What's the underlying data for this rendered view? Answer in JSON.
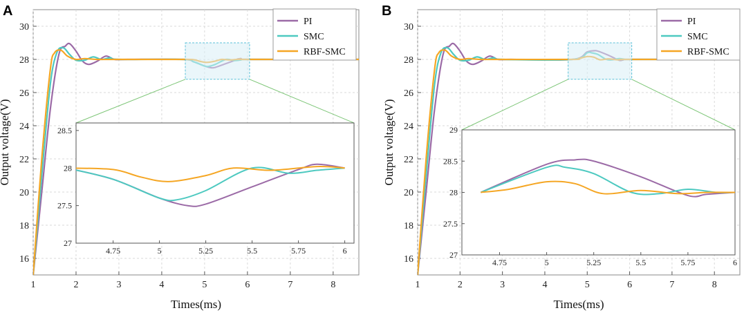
{
  "colors": {
    "PI": "#9b6aa6",
    "SMC": "#4dc9c0",
    "RBF-SMC": "#f5a623"
  },
  "chart_data": [
    {
      "type": "line",
      "panel_label": "A",
      "xlabel": "Times(ms)",
      "ylabel": "Output voltage(V)",
      "xlim": [
        1,
        8.6
      ],
      "ylim": [
        15,
        31
      ],
      "xticks": [
        "1",
        "2",
        "3",
        "4",
        "5",
        "6",
        "7",
        "8"
      ],
      "yticks": [
        "16",
        "18",
        "20",
        "22",
        "24",
        "26",
        "28",
        "30"
      ],
      "legend": [
        "PI",
        "SMC",
        "RBF-SMC"
      ],
      "series": [
        {
          "name": "PI",
          "x": [
            1,
            1.2,
            1.4,
            1.6,
            1.75,
            1.85,
            2.0,
            2.15,
            2.3,
            2.5,
            2.7,
            2.9,
            3.2,
            4.5,
            4.75,
            5.0,
            5.15,
            5.25,
            5.5,
            5.75,
            5.85,
            6.0,
            8.6
          ],
          "y": [
            15,
            20,
            25,
            28.3,
            28.8,
            28.95,
            28.5,
            27.9,
            27.7,
            27.9,
            28.2,
            28.0,
            28.0,
            28.0,
            27.85,
            27.6,
            27.5,
            27.52,
            27.75,
            27.98,
            28.05,
            28.0,
            28.0
          ]
        },
        {
          "name": "SMC",
          "x": [
            1,
            1.2,
            1.4,
            1.55,
            1.7,
            1.85,
            2.0,
            2.2,
            2.4,
            2.6,
            2.8,
            3.0,
            4.5,
            4.75,
            5.0,
            5.1,
            5.25,
            5.5,
            5.7,
            5.85,
            6.0,
            8.6
          ],
          "y": [
            15,
            21,
            26.5,
            28.4,
            28.7,
            28.3,
            27.95,
            27.95,
            28.15,
            28.0,
            28.1,
            28.0,
            28.0,
            27.85,
            27.6,
            27.58,
            27.7,
            28.0,
            27.93,
            27.97,
            28.0,
            28.0
          ]
        },
        {
          "name": "RBF-SMC",
          "x": [
            1,
            1.2,
            1.4,
            1.5,
            1.65,
            1.8,
            2.0,
            2.2,
            2.5,
            3.0,
            4.5,
            4.75,
            4.9,
            5.05,
            5.25,
            5.4,
            5.6,
            5.85,
            6.0,
            8.6
          ],
          "y": [
            15,
            22,
            27.4,
            28.4,
            28.55,
            28.2,
            28.0,
            28.05,
            28.0,
            28.0,
            28.0,
            27.98,
            27.88,
            27.82,
            27.9,
            28.0,
            27.97,
            28.02,
            28.0,
            28.0
          ]
        }
      ],
      "inset": {
        "xlim": [
          4.55,
          6.05
        ],
        "ylim": [
          27,
          28.6
        ],
        "xticks": [
          "4.75",
          "5",
          "5.25",
          "5.5",
          "5.75",
          "6"
        ],
        "yticks": [
          "27",
          "27.5",
          "28",
          "28.5"
        ],
        "zoom_region": {
          "x": [
            4.55,
            6.05
          ],
          "y": [
            26.8,
            29.0
          ]
        }
      }
    },
    {
      "type": "line",
      "panel_label": "B",
      "xlabel": "Times(ms)",
      "ylabel": "Output voltage(V)",
      "xlim": [
        1,
        8.6
      ],
      "ylim": [
        15,
        31
      ],
      "xticks": [
        "1",
        "2",
        "3",
        "4",
        "5",
        "6",
        "7",
        "8"
      ],
      "yticks": [
        "16",
        "18",
        "20",
        "22",
        "24",
        "26",
        "28",
        "30"
      ],
      "legend": [
        "PI",
        "SMC",
        "RBF-SMC"
      ],
      "series": [
        {
          "name": "PI",
          "x": [
            1,
            1.2,
            1.4,
            1.6,
            1.75,
            1.85,
            2.0,
            2.15,
            2.3,
            2.5,
            2.7,
            2.9,
            3.2,
            4.65,
            5.0,
            5.15,
            5.25,
            5.5,
            5.75,
            5.85,
            6.0,
            8.6
          ],
          "y": [
            15,
            20,
            25,
            28.3,
            28.8,
            28.95,
            28.5,
            27.9,
            27.7,
            27.9,
            28.2,
            28.0,
            28.0,
            28.0,
            28.45,
            28.52,
            28.5,
            28.25,
            27.95,
            27.97,
            28.0,
            28.0
          ]
        },
        {
          "name": "SMC",
          "x": [
            1,
            1.2,
            1.4,
            1.55,
            1.7,
            1.85,
            2.0,
            2.2,
            2.4,
            2.6,
            2.8,
            3.0,
            4.65,
            5.0,
            5.1,
            5.25,
            5.45,
            5.6,
            5.75,
            5.9,
            6.0,
            8.6
          ],
          "y": [
            15,
            21,
            26.5,
            28.4,
            28.7,
            28.3,
            27.95,
            27.95,
            28.15,
            28.0,
            28.1,
            28.0,
            28.0,
            28.4,
            28.4,
            28.3,
            28.0,
            27.98,
            28.05,
            28.0,
            28.0,
            28.0
          ]
        },
        {
          "name": "RBF-SMC",
          "x": [
            1,
            1.2,
            1.4,
            1.5,
            1.65,
            1.8,
            2.0,
            2.2,
            2.5,
            3.0,
            4.65,
            4.8,
            5.0,
            5.15,
            5.3,
            5.5,
            5.7,
            5.85,
            6.0,
            8.6
          ],
          "y": [
            15,
            22,
            27.4,
            28.4,
            28.55,
            28.2,
            28.0,
            28.05,
            28.0,
            28.0,
            28.0,
            28.05,
            28.17,
            28.14,
            27.98,
            28.03,
            27.98,
            28.0,
            28.0,
            28.0
          ]
        }
      ],
      "inset": {
        "xlim": [
          4.55,
          6.0
        ],
        "ylim": [
          27,
          29
        ],
        "xticks": [
          "4.75",
          "5",
          "5.25",
          "5.5",
          "5.75",
          "6"
        ],
        "yticks": [
          "27",
          "27.5",
          "28",
          "28.5",
          "29"
        ],
        "zoom_region": {
          "x": [
            4.55,
            6.05
          ],
          "y": [
            26.8,
            29.0
          ]
        }
      }
    }
  ]
}
